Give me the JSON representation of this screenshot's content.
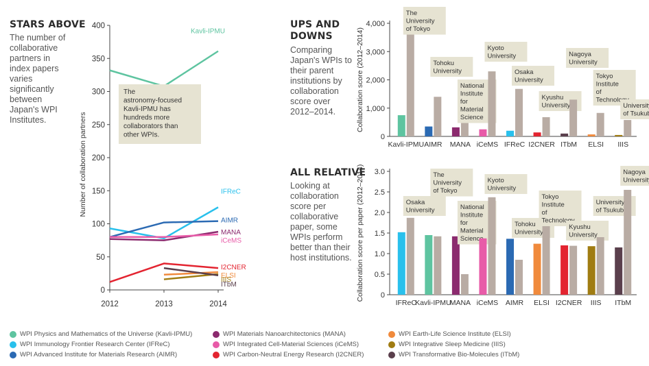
{
  "panels": {
    "stars": {
      "title": "STARS ABOVE",
      "desc": "The number of collaborative partners in index papers varies significantly between Japan's WPI Institutes."
    },
    "ups": {
      "title_line1": "UPS AND",
      "title_line2": "DOWNS",
      "desc": "Comparing Japan's WPIs to their parent institutions by collaboration score over 2012–2014."
    },
    "relative": {
      "title": "ALL RELATIVE",
      "desc": "Looking at collaboration score per collaborative paper, some WPIs perform better than their host institutions."
    }
  },
  "colors": {
    "Kavli-IPMU": "#5ec4a0",
    "IFReC": "#29c0ec",
    "AIMR": "#2b6ab3",
    "MANA": "#8b2a6e",
    "iCeMS": "#e85ba8",
    "I2CNER": "#e32430",
    "ELSI": "#f08a3c",
    "IIIS": "#a07c12",
    "ITbM": "#5a3f4c",
    "host": "#b9aca4",
    "label_box": "#e6e3d2"
  },
  "chart_data": [
    {
      "type": "line",
      "ylabel": "Number of collaboration partners",
      "x": [
        "2012",
        "2013",
        "2014"
      ],
      "ylim": [
        0,
        400
      ],
      "yticks": [
        "0",
        "50",
        "100",
        "150",
        "200",
        "250",
        "300",
        "350",
        "400"
      ],
      "grid": false,
      "annotation": "The astronomy-focused Kavli-IPMU has hundreds more collaborators than other WPIs.",
      "series": [
        {
          "name": "Kavli-IPMU",
          "values": [
            332,
            308,
            361
          ]
        },
        {
          "name": "IFReC",
          "values": [
            93,
            78,
            125
          ]
        },
        {
          "name": "AIMR",
          "values": [
            80,
            102,
            104
          ]
        },
        {
          "name": "MANA",
          "values": [
            77,
            75,
            88
          ]
        },
        {
          "name": "iCeMS",
          "values": [
            80,
            80,
            84
          ]
        },
        {
          "name": "I2CNER",
          "values": [
            12,
            40,
            33
          ]
        },
        {
          "name": "ELSI",
          "values": [
            null,
            23,
            27
          ]
        },
        {
          "name": "IIIS",
          "values": [
            null,
            16,
            24
          ]
        },
        {
          "name": "ITbM",
          "values": [
            null,
            33,
            22
          ]
        }
      ]
    },
    {
      "type": "bar",
      "ylabel": "Collaboration score (2012–2014)",
      "ylim": [
        0,
        4000
      ],
      "yticks": [
        "0",
        "1,000",
        "2,000",
        "3,000",
        "4,000"
      ],
      "categories": [
        "Kavli-IPMU",
        "AIMR",
        "MANA",
        "iCeMS",
        "IFReC",
        "I2CNER",
        "ITbM",
        "ELSI",
        "IIIS"
      ],
      "series": [
        {
          "values": [
            750,
            350,
            320,
            250,
            200,
            140,
            100,
            70,
            50
          ]
        },
        {
          "values": [
            3800,
            1400,
            620,
            2300,
            1680,
            680,
            1300,
            830,
            580
          ]
        }
      ],
      "host_labels": [
        "The University of Tokyo",
        "Tohoku University",
        "National Institute for Material Science",
        "Kyoto University",
        "Osaka University",
        "Kyushu University",
        "Nagoya University",
        "Tokyo Institute of Technology",
        "University of Tsukuba"
      ]
    },
    {
      "type": "bar",
      "ylabel": "Collaboration score per paper (2012–2014)",
      "ylim": [
        0,
        3.0
      ],
      "yticks": [
        "0",
        "0.5",
        "1.0",
        "1.5",
        "2.0",
        "2.5",
        "3.0"
      ],
      "categories": [
        "IFReC",
        "Kavli-IPMU",
        "MANA",
        "iCeMS",
        "AIMR",
        "ELSI",
        "I2CNER",
        "IIIS",
        "ITbM"
      ],
      "series": [
        {
          "values": [
            1.52,
            1.45,
            1.42,
            1.37,
            1.36,
            1.24,
            1.2,
            1.18,
            1.15
          ]
        },
        {
          "values": [
            1.87,
            1.42,
            0.5,
            2.37,
            0.85,
            1.8,
            1.19,
            1.4,
            2.55
          ]
        }
      ],
      "host_labels": [
        "Osaka University",
        "The University of Tokyo",
        "National Institute for Material Science",
        "Kyoto University",
        "Tohoku University",
        "Tokyo Institute of Technology",
        "Kyushu University",
        "University of Tsukuba",
        "Nagoya University"
      ]
    }
  ],
  "legend": [
    {
      "key": "Kavli-IPMU",
      "label": "WPI Physics and Mathematics of the Universe (Kavli-IPMU)"
    },
    {
      "key": "IFReC",
      "label": "WPI Immunology Frontier Research Center (IFReC)"
    },
    {
      "key": "AIMR",
      "label": "WPI Advanced Institute for Materials Research (AIMR)"
    },
    {
      "key": "MANA",
      "label": "WPI Materials Nanoarchitectonics (MANA)"
    },
    {
      "key": "iCeMS",
      "label": "WPI Integrated Cell-Material Sciences (iCeMS)"
    },
    {
      "key": "I2CNER",
      "label": "WPI Carbon-Neutral Energy Research (I2CNER)"
    },
    {
      "key": "ELSI",
      "label": "WPI Earth-Life Science Institute (ELSI)"
    },
    {
      "key": "IIIS",
      "label": "WPI Integrative Sleep Medicine (IIIS)"
    },
    {
      "key": "ITbM",
      "label": "WPI Transformative Bio-Molecules (ITbM)"
    }
  ]
}
